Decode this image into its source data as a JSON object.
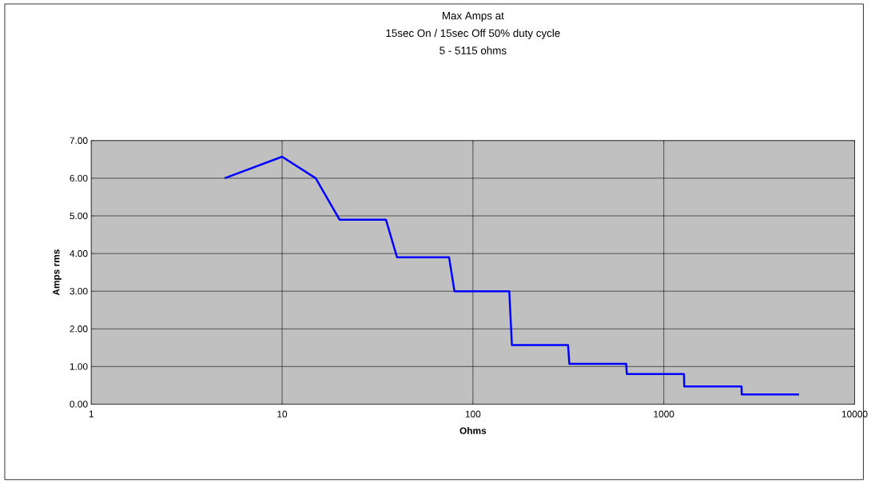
{
  "chart_data": {
    "type": "line",
    "title": "Max Amps at",
    "subtitle": "15sec On / 15sec Off 50% duty cycle",
    "annotations": [
      "5 - 5115 ohms"
    ],
    "xlabel": "Ohms",
    "ylabel": "Amps rms",
    "log": "x",
    "grid": true,
    "marker": "none",
    "line_style": "solid",
    "xlim": [
      1,
      10000
    ],
    "xticks": [
      1,
      10,
      100,
      1000,
      10000
    ],
    "ylim": [
      0,
      7
    ],
    "yticks": [
      {
        "value": 0,
        "label": "0.00"
      },
      {
        "value": 1,
        "label": "1.00"
      },
      {
        "value": 2,
        "label": "2.00"
      },
      {
        "value": 3,
        "label": "3.00"
      },
      {
        "value": 4,
        "label": "4.00"
      },
      {
        "value": 5,
        "label": "5.00"
      },
      {
        "value": 6,
        "label": "6.00"
      },
      {
        "value": 7,
        "label": "7.00"
      }
    ],
    "x": [
      5,
      10,
      15,
      20,
      35,
      40,
      75,
      80,
      155,
      160,
      315,
      320,
      635,
      640,
      1275,
      1280,
      2555,
      2560,
      5115
    ],
    "series": [
      {
        "color": "#0000ff",
        "values": [
          6.0,
          6.57,
          6.0,
          4.9,
          4.9,
          3.9,
          3.9,
          3.0,
          3.0,
          1.57,
          1.57,
          1.07,
          1.07,
          0.8,
          0.8,
          0.47,
          0.47,
          0.26,
          0.26
        ]
      }
    ]
  }
}
